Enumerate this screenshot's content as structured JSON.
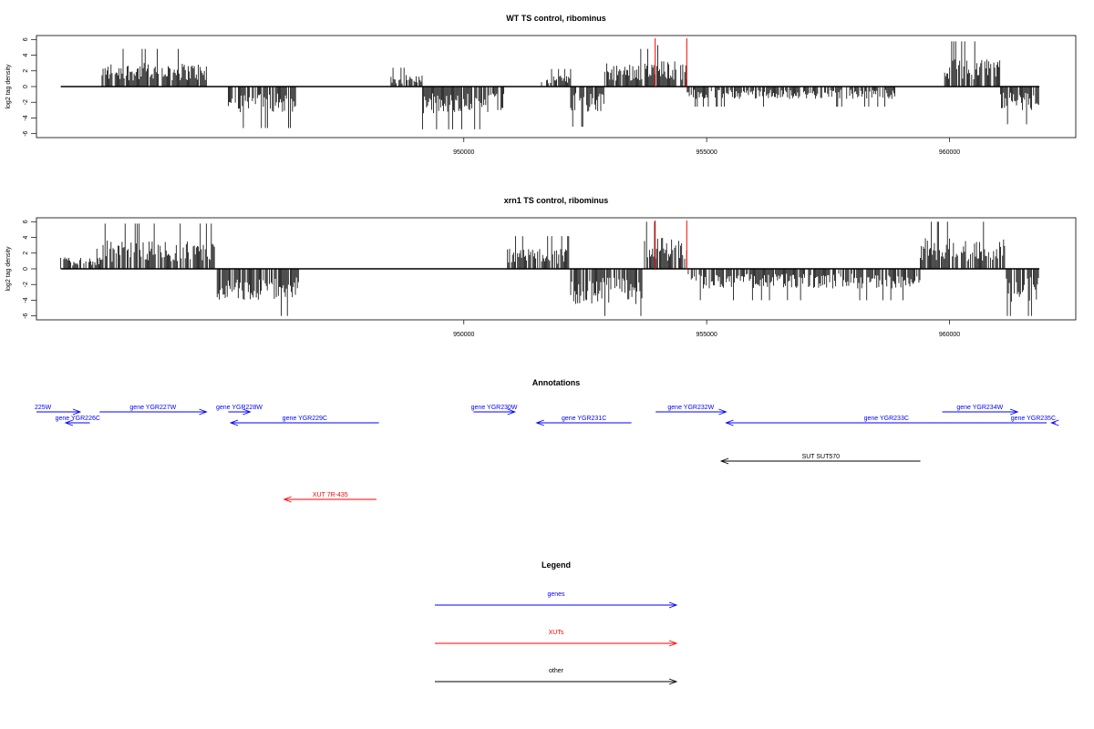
{
  "chart_data": [
    {
      "type": "bar",
      "title": "WT TS control, ribominus",
      "ylabel": "log2 tag density",
      "xlabel": "",
      "ylim": [
        -6.5,
        6.5
      ],
      "xlim": [
        941200,
        962600
      ],
      "yticks": [
        -6,
        -4,
        -2,
        0,
        2,
        4,
        6
      ],
      "xticks": [
        950000,
        955000,
        960000
      ],
      "xtick_labels": [
        "950000",
        "955000",
        "960000"
      ],
      "markers": [
        953940,
        954590
      ],
      "marker_color": "#ff0000",
      "track_range": [
        941700,
        961850
      ],
      "segments": [
        {
          "x": [
            941700,
            942550
          ],
          "sign": 0,
          "amp": 0
        },
        {
          "x": [
            942550,
            944700
          ],
          "sign": 1,
          "amp": 3.0
        },
        {
          "x": [
            944700,
            945150
          ],
          "sign": 0,
          "amp": 0
        },
        {
          "x": [
            945150,
            946550
          ],
          "sign": -1,
          "amp": 3.3
        },
        {
          "x": [
            946550,
            948500
          ],
          "sign": 0,
          "amp": 0
        },
        {
          "x": [
            948500,
            949150
          ],
          "sign": 1,
          "amp": 1.5
        },
        {
          "x": [
            949150,
            950900
          ],
          "sign": -1,
          "amp": 3.4
        },
        {
          "x": [
            950900,
            951600
          ],
          "sign": 0,
          "amp": 0
        },
        {
          "x": [
            951600,
            952200
          ],
          "sign": 1,
          "amp": 1.4
        },
        {
          "x": [
            952200,
            952900
          ],
          "sign": -1,
          "amp": 3.2
        },
        {
          "x": [
            952900,
            953950
          ],
          "sign": 1,
          "amp": 3.0
        },
        {
          "x": [
            953950,
            954600
          ],
          "sign": 1,
          "amp": 3.3
        },
        {
          "x": [
            954600,
            958900
          ],
          "sign": -1,
          "amp": 1.6
        },
        {
          "x": [
            958900,
            959900
          ],
          "sign": 0,
          "amp": 0
        },
        {
          "x": [
            959900,
            961050
          ],
          "sign": 1,
          "amp": 3.6
        },
        {
          "x": [
            961050,
            961850
          ],
          "sign": -1,
          "amp": 3.0
        }
      ]
    },
    {
      "type": "bar",
      "title": "xrn1 TS control, ribominus",
      "ylabel": "log2 tag density",
      "xlabel": "",
      "ylim": [
        -6.5,
        6.5
      ],
      "xlim": [
        941200,
        962600
      ],
      "yticks": [
        -6,
        -4,
        -2,
        0,
        2,
        4,
        6
      ],
      "xticks": [
        950000,
        955000,
        960000
      ],
      "xtick_labels": [
        "950000",
        "955000",
        "960000"
      ],
      "markers": [
        953940,
        954590
      ],
      "marker_color": "#ff0000",
      "track_range": [
        941700,
        961850
      ],
      "segments": [
        {
          "x": [
            941700,
            942550
          ],
          "sign": 1,
          "amp": 1.6
        },
        {
          "x": [
            942550,
            944900
          ],
          "sign": 1,
          "amp": 3.6
        },
        {
          "x": [
            944900,
            946600
          ],
          "sign": -1,
          "amp": 4.0
        },
        {
          "x": [
            946600,
            950900
          ],
          "sign": 0,
          "amp": 0
        },
        {
          "x": [
            950900,
            952200
          ],
          "sign": 1,
          "amp": 2.6
        },
        {
          "x": [
            952200,
            953700
          ],
          "sign": -1,
          "amp": 4.5
        },
        {
          "x": [
            953700,
            954600
          ],
          "sign": 1,
          "amp": 4.0
        },
        {
          "x": [
            954600,
            959400
          ],
          "sign": -1,
          "amp": 2.5
        },
        {
          "x": [
            959400,
            961150
          ],
          "sign": 1,
          "amp": 4.0
        },
        {
          "x": [
            961150,
            961850
          ],
          "sign": -1,
          "amp": 4.2
        }
      ]
    }
  ],
  "annotations": {
    "title": "Annotations",
    "xlim": [
      941200,
      962600
    ],
    "colors": {
      "genes": "#0000ff",
      "xuts": "#ff0000",
      "other": "#000000"
    },
    "features": [
      {
        "label": "225W",
        "kind": "genes",
        "strand": "+",
        "start": 941200,
        "end": 942100,
        "row": 0
      },
      {
        "label": "gene YGR226C",
        "kind": "genes",
        "strand": "-",
        "start": 941800,
        "end": 942300,
        "row": 1
      },
      {
        "label": "gene YGR227W",
        "kind": "genes",
        "strand": "+",
        "start": 942500,
        "end": 944700,
        "row": 0
      },
      {
        "label": "gene YGR228W",
        "kind": "genes",
        "strand": "+",
        "start": 945150,
        "end": 945600,
        "row": 0
      },
      {
        "label": "gene YGR229C",
        "kind": "genes",
        "strand": "-",
        "start": 945200,
        "end": 948250,
        "row": 1
      },
      {
        "label": "gene YGR230W",
        "kind": "genes",
        "strand": "+",
        "start": 950200,
        "end": 951050,
        "row": 0
      },
      {
        "label": "gene YGR231C",
        "kind": "genes",
        "strand": "-",
        "start": 951500,
        "end": 953450,
        "row": 1
      },
      {
        "label": "gene YGR232W",
        "kind": "genes",
        "strand": "+",
        "start": 953950,
        "end": 955400,
        "row": 0
      },
      {
        "label": "gene YGR233C",
        "kind": "genes",
        "strand": "-",
        "start": 955400,
        "end": 962000,
        "row": 1
      },
      {
        "label": "gene YGR234W",
        "kind": "genes",
        "strand": "+",
        "start": 959850,
        "end": 961400,
        "row": 0
      },
      {
        "label": "gene YGR235C",
        "kind": "genes",
        "strand": "-",
        "start": 962100,
        "end": 962900,
        "row": 1
      },
      {
        "label": "SUT SUT570",
        "kind": "other",
        "strand": "-",
        "start": 955300,
        "end": 959400,
        "row": 2
      },
      {
        "label": "XUT 7R-435",
        "kind": "xuts",
        "strand": "-",
        "start": 946300,
        "end": 948200,
        "row": 3
      }
    ]
  },
  "legend": {
    "title": "Legend",
    "items": [
      {
        "label": "genes",
        "color": "#0000ff"
      },
      {
        "label": "XUTs",
        "color": "#ff0000"
      },
      {
        "label": "other",
        "color": "#000000"
      }
    ]
  }
}
